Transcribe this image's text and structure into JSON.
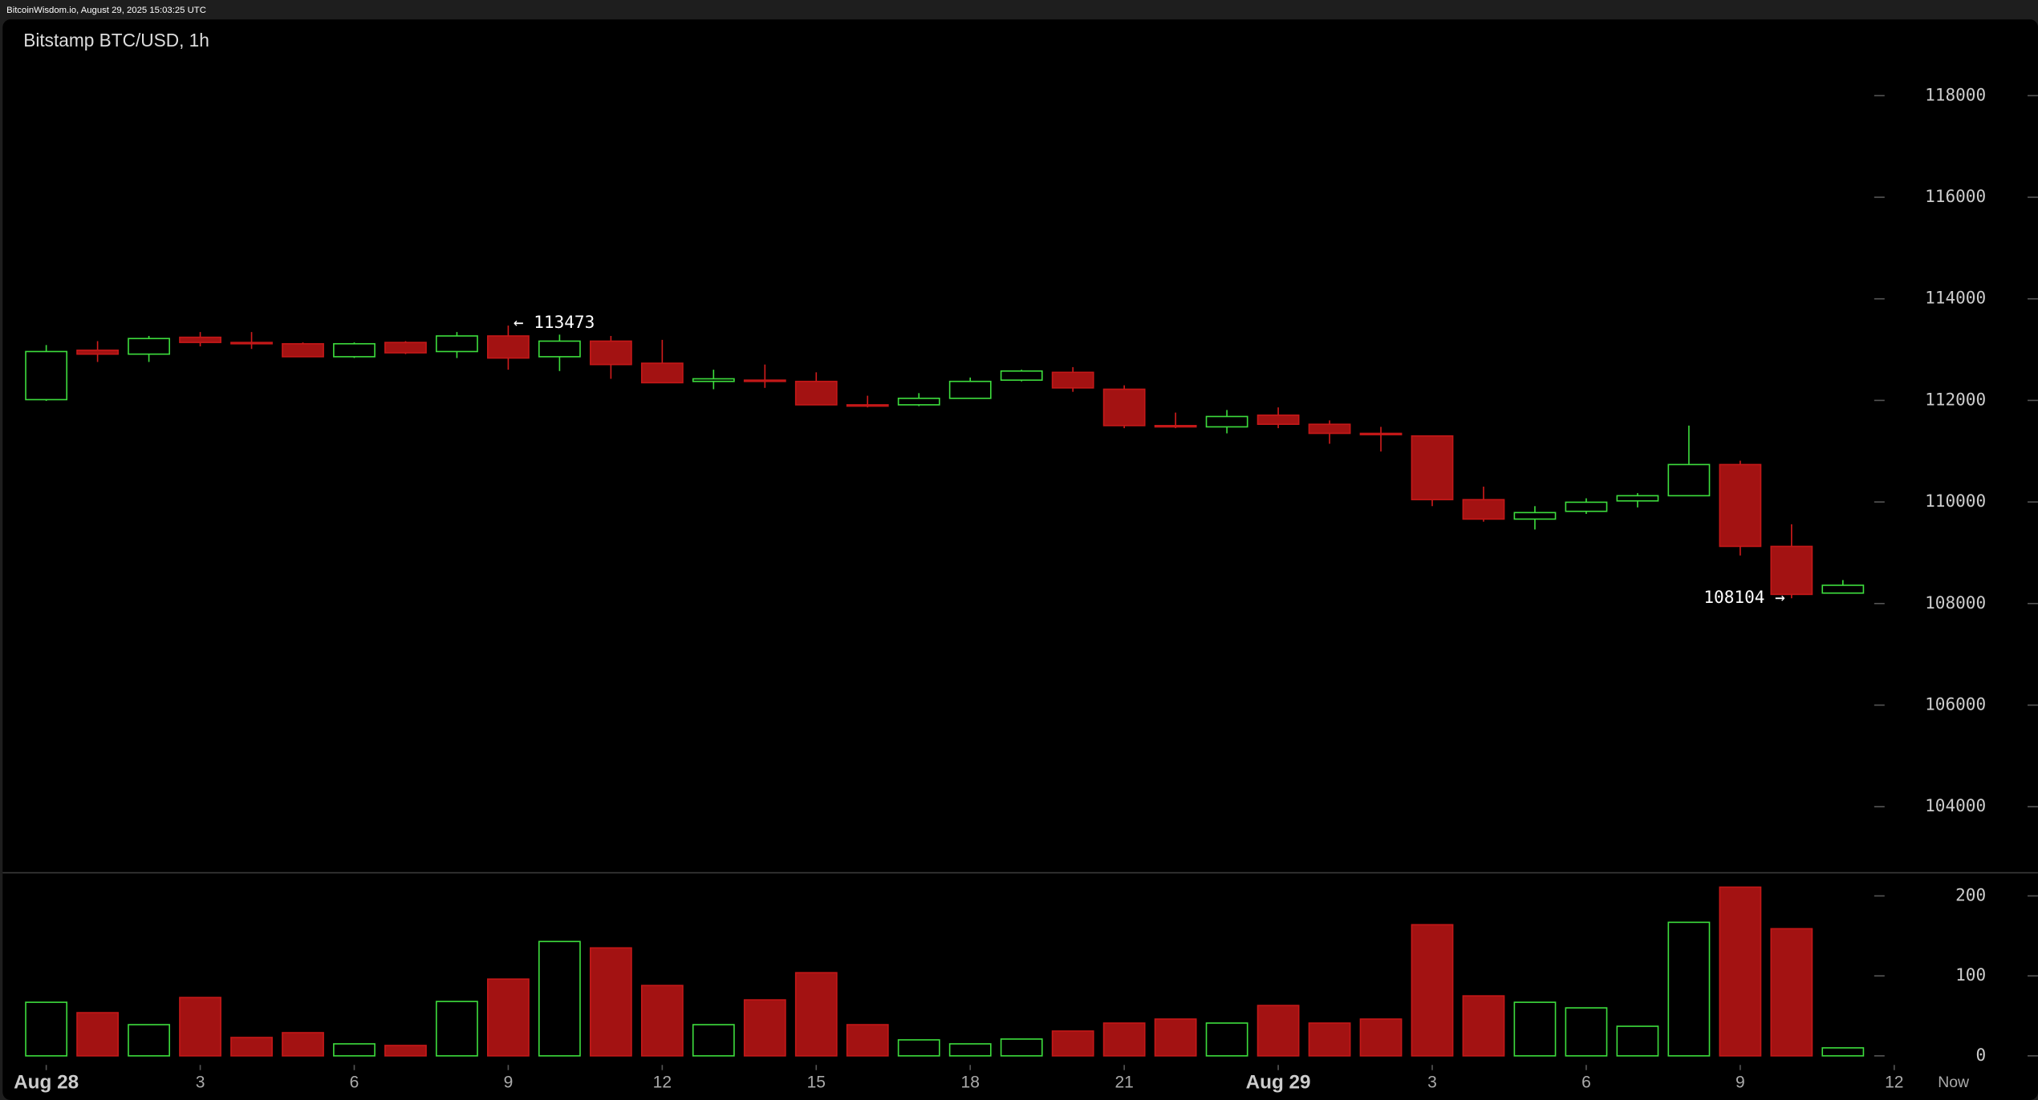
{
  "header": "BitcoinWisdom.io, August 29, 2025 15:03:25 UTC",
  "chart_data": [
    {
      "type": "candlestick",
      "title": "Bitstamp BTC/USD, 1h",
      "up_color": "#3ddc3d",
      "down_color": "#a31212",
      "xlim": [
        -0.9,
        38.8
      ],
      "xticks": [
        {
          "value": 0,
          "label": "Aug 28"
        },
        3,
        6,
        9,
        12,
        15,
        18,
        21,
        {
          "value": 24,
          "label": "Aug 29"
        },
        {
          "value": 27,
          "label": "3"
        },
        {
          "value": 30,
          "label": "6"
        },
        {
          "value": 33,
          "label": "9"
        },
        {
          "value": 36,
          "label": "12"
        }
      ],
      "now_label": "Now",
      "ylim": [
        102700,
        119500
      ],
      "yticks": [
        104000,
        106000,
        108000,
        110000,
        112000,
        114000,
        116000,
        118000
      ],
      "open": [
        112015,
        112988,
        112911,
        113243,
        113141,
        113115,
        112860,
        113141,
        112962,
        113269,
        112860,
        113167,
        112732,
        112374,
        112399,
        112374,
        111913,
        111913,
        112041,
        112399,
        112553,
        112220,
        111504,
        111479,
        111709,
        111530,
        111351,
        111300,
        110046,
        109663,
        109816,
        110021,
        110123,
        110737,
        109126,
        108206
      ],
      "high": [
        113090,
        113167,
        113269,
        113346,
        113346,
        113141,
        113141,
        113167,
        113346,
        113473,
        113295,
        113269,
        113192,
        112604,
        112706,
        112553,
        112092,
        112143,
        112450,
        112604,
        112655,
        112297,
        111760,
        111811,
        111862,
        111606,
        111479,
        111300,
        110302,
        109918,
        110072,
        110174,
        111504,
        110813,
        109561,
        108462
      ],
      "low": [
        111990,
        112757,
        112757,
        113064,
        113013,
        112860,
        112835,
        112911,
        112834,
        112604,
        112578,
        112425,
        112348,
        112220,
        112246,
        111913,
        111862,
        111887,
        112041,
        112374,
        112169,
        111453,
        111453,
        111351,
        111453,
        111146,
        110993,
        109918,
        109612,
        109458,
        109765,
        109893,
        110123,
        108946,
        108104,
        108206
      ],
      "close": [
        112962,
        112911,
        113218,
        113141,
        113115,
        112860,
        113115,
        112937,
        113269,
        112834,
        113167,
        112706,
        112348,
        112425,
        112374,
        111913,
        111887,
        112041,
        112374,
        112578,
        112246,
        111504,
        111479,
        111683,
        111530,
        111351,
        111325,
        110046,
        109663,
        109791,
        109995,
        110123,
        110737,
        109126,
        108180,
        108360
      ],
      "annotations": [
        "← 113473",
        "108104 →"
      ]
    },
    {
      "type": "bar",
      "ylim": [
        0,
        229
      ],
      "yticks": [
        0,
        100,
        200
      ],
      "values": [
        67,
        54,
        39,
        73,
        23,
        29,
        15,
        13,
        68,
        96,
        143,
        135,
        88,
        39,
        70,
        104,
        39,
        20,
        15,
        21,
        31,
        41,
        46,
        41,
        63,
        41,
        46,
        164,
        75,
        67,
        60,
        37,
        167,
        211,
        159,
        10
      ]
    }
  ]
}
